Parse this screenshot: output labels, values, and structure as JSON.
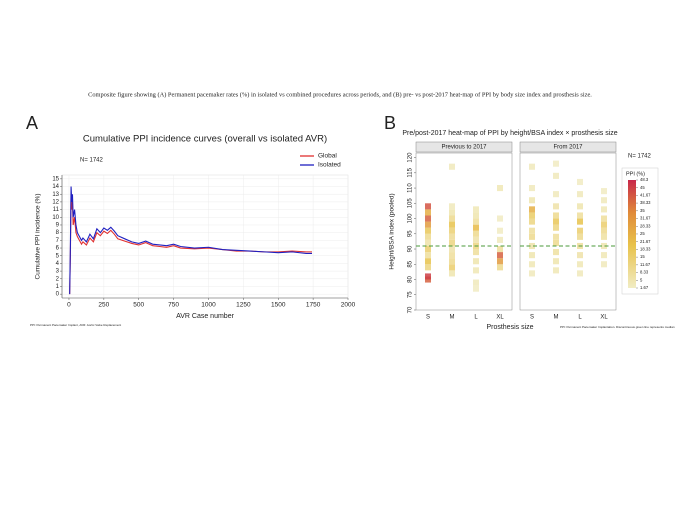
{
  "caption": "Composite figure showing (A) Permanent pacemaker rates (%) in isolated vs combined procedures across periods, and (B) pre- vs post-2017 heat-map of PPI by body size index and prosthesis size.",
  "chart_data": [
    {
      "type": "line",
      "panel": "A",
      "title": "Cumulative PPI incidence curves (overall vs isolated AVR)",
      "annotation": "N= 1742",
      "xlabel": "AVR Case number",
      "ylabel": "Cumulative PPI incidence (%)",
      "footnote": "PPI: Permanent Pacemaker Implant, AVR: Aortic Valve Replacement",
      "x": [
        5,
        10,
        15,
        20,
        25,
        30,
        40,
        50,
        60,
        75,
        90,
        100,
        125,
        150,
        175,
        200,
        225,
        250,
        275,
        300,
        325,
        350,
        400,
        450,
        500,
        550,
        600,
        650,
        700,
        750,
        800,
        900,
        1000,
        1100,
        1200,
        1300,
        1400,
        1500,
        1600,
        1700,
        1742
      ],
      "series": [
        {
          "name": "Global",
          "color": "#e03030",
          "values": [
            0,
            5,
            13,
            11,
            12,
            9,
            10,
            8,
            7.5,
            7,
            6.5,
            6.8,
            6.4,
            7.3,
            6.8,
            8,
            7.6,
            8.2,
            7.9,
            8.3,
            7.8,
            7.2,
            6.9,
            6.6,
            6.4,
            6.7,
            6.3,
            6.2,
            6.1,
            6.3,
            6.0,
            5.9,
            6.0,
            5.8,
            5.6,
            5.6,
            5.5,
            5.5,
            5.6,
            5.5,
            5.5
          ]
        },
        {
          "name": "Isolated",
          "color": "#2020c0",
          "values": [
            0,
            6,
            14,
            12,
            13,
            10,
            11,
            9,
            8,
            7.5,
            7,
            7.3,
            6.8,
            7.8,
            7.2,
            8.5,
            8,
            8.6,
            8.3,
            8.7,
            8.2,
            7.6,
            7.2,
            6.8,
            6.6,
            6.9,
            6.5,
            6.4,
            6.3,
            6.5,
            6.2,
            6.0,
            6.1,
            5.8,
            5.7,
            5.6,
            5.5,
            5.4,
            5.5,
            5.3,
            5.3
          ]
        }
      ],
      "xlim": [
        -50,
        2000
      ],
      "xticks": [
        0,
        250,
        500,
        750,
        1000,
        1250,
        1500,
        1750,
        2000
      ],
      "ylim": [
        -0.5,
        15.5
      ],
      "yticks": [
        0,
        1,
        2,
        3,
        4,
        5,
        6,
        7,
        8,
        9,
        10,
        11,
        12,
        13,
        14,
        15
      ],
      "grid": true,
      "legend": "upper right"
    },
    {
      "type": "heatmap",
      "panel": "B",
      "title": "Pre/post-2017 heat-map of PPI by height/BSA index × prosthesis size",
      "annotation": "N= 1742",
      "xlabel": "Prosthesis size",
      "ylabel": "Height/BSA index (pooled)",
      "footnote": "PPI: Permanent Pacemaker Implantation. Discontinuous green line represents median",
      "ylim": [
        70,
        121.5
      ],
      "yticks": [
        70,
        75,
        80,
        85,
        90,
        95,
        100,
        105,
        110,
        115,
        120
      ],
      "median": 91,
      "median_color": "#4a9a3a",
      "facets": [
        {
          "name": "Previous to 2017",
          "columns": [
            {
              "category": "S",
              "tiles": [
                {
                  "y": 80,
                  "value": 40
                },
                {
                  "y": 81,
                  "value": 45
                },
                {
                  "y": 84,
                  "value": 12
                },
                {
                  "y": 86,
                  "value": 20
                },
                {
                  "y": 88,
                  "value": 8
                },
                {
                  "y": 90,
                  "value": 15
                },
                {
                  "y": 92,
                  "value": 6
                },
                {
                  "y": 94,
                  "value": 10
                },
                {
                  "y": 96,
                  "value": 18
                },
                {
                  "y": 98,
                  "value": 30
                },
                {
                  "y": 100,
                  "value": 40
                },
                {
                  "y": 102,
                  "value": 25
                },
                {
                  "y": 104,
                  "value": 42
                }
              ]
            },
            {
              "category": "M",
              "tiles": [
                {
                  "y": 82,
                  "value": 5
                },
                {
                  "y": 84,
                  "value": 15
                },
                {
                  "y": 86,
                  "value": 10
                },
                {
                  "y": 88,
                  "value": 8
                },
                {
                  "y": 90,
                  "value": 6
                },
                {
                  "y": 92,
                  "value": 12
                },
                {
                  "y": 94,
                  "value": 9
                },
                {
                  "y": 96,
                  "value": 14
                },
                {
                  "y": 98,
                  "value": 20
                },
                {
                  "y": 100,
                  "value": 10
                },
                {
                  "y": 102,
                  "value": 5
                },
                {
                  "y": 104,
                  "value": 3
                },
                {
                  "y": 117,
                  "value": 3
                }
              ]
            },
            {
              "category": "L",
              "tiles": [
                {
                  "y": 77,
                  "value": 2
                },
                {
                  "y": 79,
                  "value": 3
                },
                {
                  "y": 83,
                  "value": 4
                },
                {
                  "y": 86,
                  "value": 5
                },
                {
                  "y": 89,
                  "value": 8
                },
                {
                  "y": 91,
                  "value": 12
                },
                {
                  "y": 93,
                  "value": 6
                },
                {
                  "y": 95,
                  "value": 10
                },
                {
                  "y": 97,
                  "value": 22
                },
                {
                  "y": 99,
                  "value": 8
                },
                {
                  "y": 101,
                  "value": 5
                },
                {
                  "y": 103,
                  "value": 4
                }
              ]
            },
            {
              "category": "XL",
              "tiles": [
                {
                  "y": 84,
                  "value": 10
                },
                {
                  "y": 86,
                  "value": 30
                },
                {
                  "y": 88,
                  "value": 40
                },
                {
                  "y": 90,
                  "value": 8
                },
                {
                  "y": 93,
                  "value": 3
                },
                {
                  "y": 96,
                  "value": 2
                },
                {
                  "y": 100,
                  "value": 2
                },
                {
                  "y": 110,
                  "value": 4
                }
              ]
            }
          ]
        },
        {
          "name": "From 2017",
          "columns": [
            {
              "category": "S",
              "tiles": [
                {
                  "y": 82,
                  "value": 3
                },
                {
                  "y": 85,
                  "value": 4
                },
                {
                  "y": 88,
                  "value": 5
                },
                {
                  "y": 91,
                  "value": 6
                },
                {
                  "y": 94,
                  "value": 10
                },
                {
                  "y": 96,
                  "value": 8
                },
                {
                  "y": 99,
                  "value": 12
                },
                {
                  "y": 101,
                  "value": 16
                },
                {
                  "y": 103,
                  "value": 25
                },
                {
                  "y": 106,
                  "value": 5
                },
                {
                  "y": 110,
                  "value": 3
                },
                {
                  "y": 117,
                  "value": 3
                }
              ]
            },
            {
              "category": "M",
              "tiles": [
                {
                  "y": 83,
                  "value": 4
                },
                {
                  "y": 86,
                  "value": 5
                },
                {
                  "y": 89,
                  "value": 7
                },
                {
                  "y": 92,
                  "value": 10
                },
                {
                  "y": 94,
                  "value": 8
                },
                {
                  "y": 97,
                  "value": 12
                },
                {
                  "y": 99,
                  "value": 18
                },
                {
                  "y": 101,
                  "value": 10
                },
                {
                  "y": 104,
                  "value": 6
                },
                {
                  "y": 108,
                  "value": 3
                },
                {
                  "y": 114,
                  "value": 3
                },
                {
                  "y": 118,
                  "value": 2
                }
              ]
            },
            {
              "category": "L",
              "tiles": [
                {
                  "y": 82,
                  "value": 3
                },
                {
                  "y": 85,
                  "value": 4
                },
                {
                  "y": 88,
                  "value": 6
                },
                {
                  "y": 91,
                  "value": 8
                },
                {
                  "y": 94,
                  "value": 10
                },
                {
                  "y": 96,
                  "value": 15
                },
                {
                  "y": 99,
                  "value": 20
                },
                {
                  "y": 101,
                  "value": 8
                },
                {
                  "y": 104,
                  "value": 5
                },
                {
                  "y": 108,
                  "value": 3
                },
                {
                  "y": 112,
                  "value": 2
                }
              ]
            },
            {
              "category": "XL",
              "tiles": [
                {
                  "y": 85,
                  "value": 3
                },
                {
                  "y": 88,
                  "value": 4
                },
                {
                  "y": 91,
                  "value": 5
                },
                {
                  "y": 94,
                  "value": 7
                },
                {
                  "y": 96,
                  "value": 10
                },
                {
                  "y": 98,
                  "value": 15
                },
                {
                  "y": 100,
                  "value": 8
                },
                {
                  "y": 103,
                  "value": 4
                },
                {
                  "y": 106,
                  "value": 3
                },
                {
                  "y": 109,
                  "value": 2
                }
              ]
            }
          ]
        }
      ],
      "colorbar": {
        "title": "PPI (%)",
        "ticks": [
          48.3,
          45,
          41.67,
          38.33,
          35,
          31.67,
          28.33,
          25,
          21.67,
          18.33,
          15,
          11.67,
          8.33,
          5,
          1.67
        ]
      }
    }
  ]
}
